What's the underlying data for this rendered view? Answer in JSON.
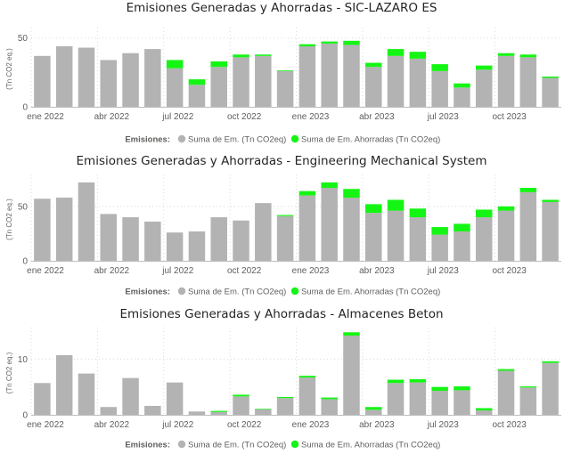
{
  "legend": {
    "heading": "Emisiones:",
    "series_labels": [
      "Suma de Em. (Tn CO2eq)",
      "Suma de Em. Ahorradas (Tn CO2eq)"
    ]
  },
  "colors": {
    "generated": "#b3b3b3",
    "saved": "#14f514"
  },
  "x_tick_labels": [
    "ene 2022",
    "abr 2022",
    "jul 2022",
    "oct 2022",
    "ene 2023",
    "abr 2023",
    "jul 2023",
    "oct 2023"
  ],
  "chart_data": [
    {
      "type": "bar",
      "stacked": true,
      "title": "Emisiones Generadas y Ahorradas - SIC-LAZARO ES",
      "ylabel": "(Tn CO2 eq.)",
      "ylim": [
        0,
        55
      ],
      "yticks": [
        0,
        50
      ],
      "categories": [
        "ene 2022",
        "feb 2022",
        "mar 2022",
        "abr 2022",
        "may 2022",
        "jun 2022",
        "jul 2022",
        "ago 2022",
        "sep 2022",
        "oct 2022",
        "nov 2022",
        "dic 2022",
        "ene 2023",
        "feb 2023",
        "mar 2023",
        "abr 2023",
        "may 2023",
        "jun 2023",
        "jul 2023",
        "ago 2023",
        "sep 2023",
        "oct 2023",
        "nov 2023",
        "dic 2023"
      ],
      "series": [
        {
          "name": "Suma de Em. (Tn CO2eq)",
          "values": [
            37,
            44,
            43,
            34,
            39,
            42,
            28,
            16,
            29,
            36,
            37,
            26,
            44,
            46,
            45,
            29,
            37,
            35,
            26,
            14,
            27,
            37,
            36,
            21
          ]
        },
        {
          "name": "Suma de Em. Ahorradas (Tn CO2eq)",
          "values": [
            0,
            0,
            0,
            0,
            0,
            0,
            6,
            4,
            4,
            2,
            1,
            0.5,
            1.5,
            1.5,
            3,
            3,
            5,
            5,
            5,
            3,
            3,
            2,
            2,
            1
          ]
        }
      ]
    },
    {
      "type": "bar",
      "stacked": true,
      "title": "Emisiones Generadas y Ahorradas - Engineering Mechanical System",
      "ylabel": "(Tn CO2 eq.)",
      "ylim": [
        0,
        76
      ],
      "yticks": [
        0,
        50
      ],
      "categories": [
        "ene 2022",
        "feb 2022",
        "mar 2022",
        "abr 2022",
        "may 2022",
        "jun 2022",
        "jul 2022",
        "ago 2022",
        "sep 2022",
        "oct 2022",
        "nov 2022",
        "dic 2022",
        "ene 2023",
        "feb 2023",
        "mar 2023",
        "abr 2023",
        "may 2023",
        "jun 2023",
        "jul 2023",
        "ago 2023",
        "sep 2023",
        "oct 2023",
        "nov 2023",
        "dic 2023"
      ],
      "series": [
        {
          "name": "Suma de Em. (Tn CO2eq)",
          "values": [
            57,
            58,
            72,
            43,
            40,
            36,
            26,
            27,
            40,
            37,
            53,
            41,
            60,
            67,
            58,
            44,
            46,
            40,
            24,
            27,
            40,
            46,
            63,
            54
          ]
        },
        {
          "name": "Suma de Em. Ahorradas (Tn CO2eq)",
          "values": [
            0,
            0,
            0,
            0,
            0,
            0,
            0,
            0,
            0,
            0,
            0,
            1,
            4,
            5,
            8,
            8,
            10,
            8,
            7,
            7,
            7,
            4,
            4,
            2
          ]
        }
      ]
    },
    {
      "type": "bar",
      "stacked": true,
      "title": "Emisiones Generadas y Ahorradas - Almacenes Beton",
      "ylabel": "(Tn CO2 eq.)",
      "ylim": [
        0,
        15
      ],
      "yticks": [
        0,
        10
      ],
      "categories": [
        "ene 2022",
        "feb 2022",
        "mar 2022",
        "abr 2022",
        "may 2022",
        "jun 2022",
        "jul 2022",
        "ago 2022",
        "sep 2022",
        "oct 2022",
        "nov 2022",
        "dic 2022",
        "ene 2023",
        "feb 2023",
        "mar 2023",
        "abr 2023",
        "may 2023",
        "jun 2023",
        "jul 2023",
        "ago 2023",
        "sep 2023",
        "oct 2023",
        "nov 2023",
        "dic 2023"
      ],
      "series": [
        {
          "name": "Suma de Em. (Tn CO2eq)",
          "values": [
            5.7,
            10.7,
            7.4,
            1.4,
            6.6,
            1.6,
            5.8,
            0.6,
            0.5,
            3.3,
            1.0,
            3.0,
            6.7,
            2.8,
            14.2,
            0.9,
            5.7,
            5.8,
            4.3,
            4.4,
            0.8,
            7.9,
            4.9,
            9.3
          ]
        },
        {
          "name": "Suma de Em. Ahorradas (Tn CO2eq)",
          "values": [
            0,
            0,
            0,
            0,
            0,
            0,
            0,
            0,
            0.2,
            0.3,
            0.1,
            0.2,
            0.3,
            0.3,
            0.6,
            0.5,
            0.6,
            0.6,
            0.7,
            0.7,
            0.4,
            0.3,
            0.2,
            0.3
          ]
        }
      ]
    }
  ]
}
